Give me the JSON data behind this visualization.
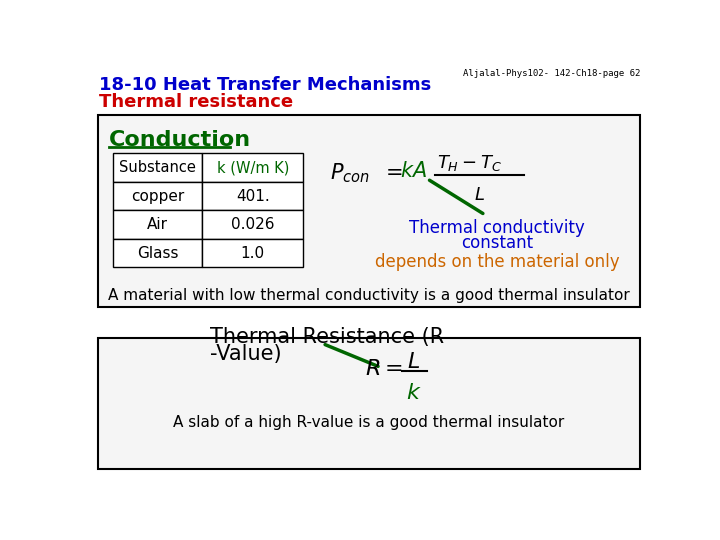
{
  "title_line1": "18-10 Heat Transfer Mechanisms",
  "title_line2": "Thermal resistance",
  "title_color1": "#0000CC",
  "title_color2": "#CC0000",
  "watermark": "Aljalal-Phys102- 142-Ch18-page 62",
  "bg_color": "#FFFFFF",
  "conduction_label": "Conduction",
  "conduction_color": "#006600",
  "table_headers": [
    "Substance",
    "k (W/m K)"
  ],
  "table_rows": [
    [
      "copper",
      "401."
    ],
    [
      "Air",
      "0.026"
    ],
    [
      "Glass",
      "1.0"
    ]
  ],
  "k_color": "#006600",
  "thermal_cond_text1": "Thermal conductivity",
  "thermal_cond_text2": "constant",
  "thermal_cond_color": "#0000CC",
  "material_text": "depends on the material only",
  "material_color": "#CC6600",
  "bottom_note1": "A material with low thermal conductivity is a good thermal insulator",
  "thermal_res_line1": "Thermal Resistance (R",
  "thermal_res_line2": "-Value)",
  "slab_note": "A slab of a high R-value is a good thermal insulator"
}
